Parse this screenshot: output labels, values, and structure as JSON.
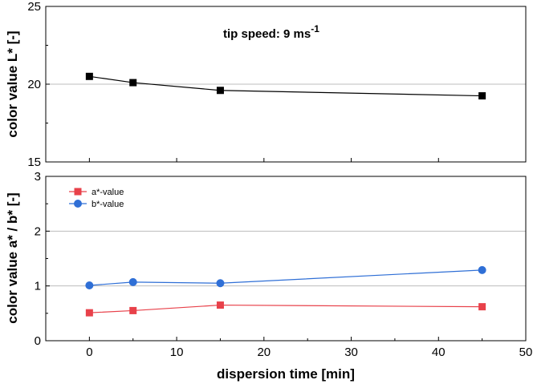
{
  "chart_data": [
    {
      "type": "line",
      "panel": "top",
      "ylabel": "color value L* [-]",
      "ylim": [
        15,
        25
      ],
      "yticks": [
        15,
        20,
        25
      ],
      "xlim": [
        -5,
        50
      ],
      "grid": "horizontal at 20",
      "annotation": {
        "text": "tip speed: 9 ms",
        "superscript": "-1"
      },
      "series": [
        {
          "marker": "square",
          "color": "#000000",
          "x": [
            0,
            5,
            15,
            45
          ],
          "y": [
            20.5,
            20.1,
            19.6,
            19.25
          ]
        }
      ]
    },
    {
      "type": "line",
      "panel": "bottom",
      "ylabel": "color value a* / b* [-]",
      "xlabel": "dispersion time [min]",
      "ylim": [
        0,
        3
      ],
      "yticks": [
        0,
        1,
        2,
        3
      ],
      "xlim": [
        -5,
        50
      ],
      "xticks": [
        0,
        10,
        20,
        30,
        40,
        50
      ],
      "grid": "horizontal at 1 and 2",
      "legend": "top-left",
      "series": [
        {
          "name": "a*-value",
          "marker": "square",
          "color": "#e8414a",
          "x": [
            0,
            5,
            15,
            45
          ],
          "y": [
            0.51,
            0.55,
            0.65,
            0.62
          ]
        },
        {
          "name": "b*-value",
          "marker": "circle",
          "color": "#2f6fd6",
          "x": [
            0,
            5,
            15,
            45
          ],
          "y": [
            1.01,
            1.07,
            1.05,
            1.29
          ]
        }
      ]
    }
  ]
}
